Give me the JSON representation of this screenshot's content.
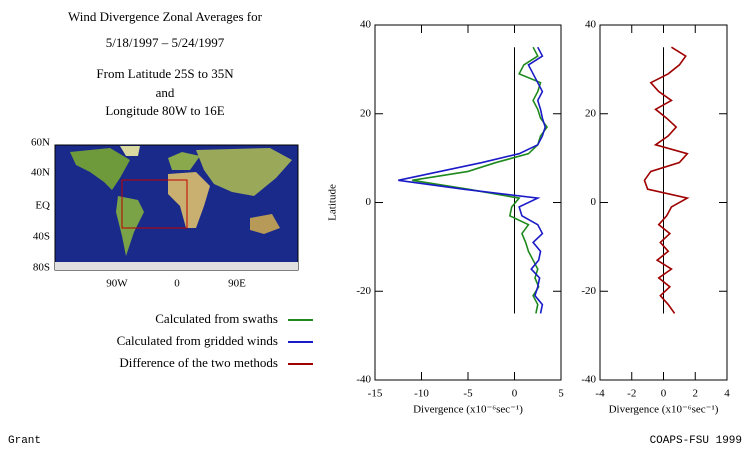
{
  "title": "Wind Divergence Zonal Averages for",
  "date_range": "5/18/1997 – 5/24/1997",
  "region": [
    "From Latitude 25S to 35N",
    "and",
    "Longitude 80W to 16E"
  ],
  "map": {
    "lat_labels": [
      "60N",
      "40N",
      "EQ",
      "40S",
      "80S"
    ],
    "lon_labels": [
      "90W",
      "0",
      "90E"
    ]
  },
  "footer": {
    "left": "Grant",
    "right": "COAPS-FSU 1999"
  },
  "chart_data": [
    {
      "type": "line",
      "ylabel": "Latitude",
      "xlabel": "Divergence (x10⁻⁶sec⁻¹)",
      "xlim": [
        -15,
        5
      ],
      "xticks": [
        -15,
        -10,
        -5,
        0,
        5
      ],
      "ylim": [
        -40,
        40
      ],
      "yticks": [
        -40,
        -20,
        0,
        20,
        40
      ],
      "latitude": [
        -25,
        -23,
        -21,
        -19,
        -17,
        -15,
        -13,
        -11,
        -9,
        -7,
        -5,
        -3,
        -1,
        1,
        3,
        5,
        7,
        9,
        11,
        13,
        15,
        17,
        19,
        21,
        23,
        25,
        27,
        29,
        31,
        33,
        35
      ],
      "series": [
        {
          "name": "Calculated from swaths",
          "color": "#1e8a1e",
          "values": [
            2.3,
            2.5,
            2.0,
            2.6,
            2.2,
            2.5,
            2.0,
            1.5,
            1.2,
            0.8,
            1.5,
            -0.5,
            -0.3,
            0.5,
            -5,
            -11,
            -5,
            -2,
            1.5,
            2.5,
            2.8,
            3.5,
            2.8,
            2.5,
            2.0,
            2.5,
            2.8,
            0.5,
            1.0,
            2.5,
            2.0
          ]
        },
        {
          "name": "Calculated from gridded winds",
          "color": "#1a1ac8",
          "values": [
            2.8,
            3.0,
            2.2,
            2.5,
            2.7,
            1.8,
            2.6,
            2.8,
            2.0,
            3.0,
            2.5,
            0.8,
            0.5,
            2.5,
            -5.5,
            -12.5,
            -8,
            -3.5,
            0.5,
            2.5,
            3.0,
            3.3,
            3.0,
            2.8,
            2.5,
            3.0,
            2.5,
            2.0,
            1.5,
            3.0,
            2.5
          ]
        }
      ]
    },
    {
      "type": "line",
      "xlabel": "Divergence (x10⁻⁶sec⁻¹)",
      "xlim": [
        -4,
        4
      ],
      "xticks": [
        -4,
        -2,
        0,
        2,
        4
      ],
      "ylim": [
        -40,
        40
      ],
      "yticks": [
        -40,
        -20,
        0,
        20,
        40
      ],
      "latitude": [
        -25,
        -23,
        -21,
        -19,
        -17,
        -15,
        -13,
        -11,
        -9,
        -7,
        -5,
        -3,
        -1,
        1,
        3,
        5,
        7,
        9,
        11,
        13,
        15,
        17,
        19,
        21,
        23,
        25,
        27,
        29,
        31,
        33,
        35
      ],
      "series": [
        {
          "name": "Difference of the two methods",
          "color": "#a00000",
          "values": [
            0.7,
            0.3,
            -0.2,
            0.4,
            -0.3,
            0.5,
            -0.4,
            0.3,
            -0.2,
            0.4,
            -0.3,
            0.2,
            0.5,
            1.5,
            -1.0,
            -1.2,
            -0.8,
            1.0,
            1.5,
            -0.5,
            0.3,
            0.8,
            0.2,
            -0.5,
            0.5,
            -0.3,
            -0.8,
            0.3,
            1.0,
            1.4,
            0.5
          ]
        }
      ]
    }
  ]
}
